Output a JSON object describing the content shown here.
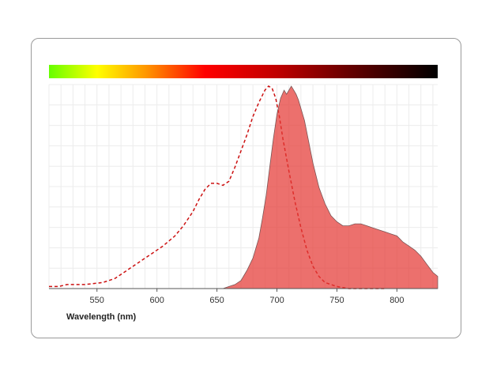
{
  "chart_data": {
    "type": "area",
    "xlabel": "Wavelength (nm)",
    "ylabel": "",
    "xlim": [
      510,
      834
    ],
    "ylim": [
      0,
      1.0
    ],
    "x_ticks": [
      550,
      600,
      650,
      700,
      750,
      800
    ],
    "grid": true,
    "legend": "none",
    "spectrum_bar_stops": [
      {
        "nm": 510,
        "color": "#66ff00"
      },
      {
        "nm": 550,
        "color": "#ffff00"
      },
      {
        "nm": 590,
        "color": "#ff9900"
      },
      {
        "nm": 640,
        "color": "#ff0000"
      },
      {
        "nm": 700,
        "color": "#c00000"
      },
      {
        "nm": 760,
        "color": "#660000"
      },
      {
        "nm": 834,
        "color": "#000000"
      }
    ],
    "series": [
      {
        "style": "dashed-line",
        "color": "#cc1111",
        "x": [
          510,
          518,
          525,
          540,
          555,
          565,
          575,
          585,
          595,
          605,
          615,
          622,
          630,
          635,
          640,
          645,
          650,
          655,
          660,
          665,
          670,
          675,
          680,
          685,
          690,
          693,
          696,
          699,
          702,
          705,
          710,
          715,
          720,
          725,
          730,
          735,
          740,
          745,
          750,
          760,
          770,
          780,
          790
        ],
        "y": [
          0.01,
          0.01,
          0.02,
          0.02,
          0.03,
          0.05,
          0.09,
          0.13,
          0.17,
          0.21,
          0.26,
          0.31,
          0.38,
          0.44,
          0.49,
          0.52,
          0.52,
          0.51,
          0.53,
          0.6,
          0.68,
          0.76,
          0.85,
          0.92,
          0.98,
          1.0,
          0.99,
          0.94,
          0.85,
          0.74,
          0.58,
          0.43,
          0.3,
          0.19,
          0.11,
          0.06,
          0.03,
          0.02,
          0.01,
          0.0,
          0.0,
          0.0,
          0.0
        ]
      },
      {
        "style": "filled-area",
        "color": "#e53935",
        "x": [
          655,
          660,
          665,
          670,
          675,
          680,
          685,
          688,
          691,
          694,
          697,
          700,
          703,
          706,
          708,
          710,
          712,
          714,
          716,
          718,
          720,
          723,
          726,
          730,
          735,
          740,
          745,
          750,
          755,
          760,
          765,
          770,
          775,
          780,
          785,
          790,
          795,
          800,
          805,
          810,
          815,
          820,
          825,
          830,
          834
        ],
        "y": [
          0.0,
          0.01,
          0.02,
          0.04,
          0.09,
          0.15,
          0.25,
          0.35,
          0.46,
          0.6,
          0.74,
          0.86,
          0.94,
          0.98,
          0.96,
          0.98,
          1.0,
          0.98,
          0.96,
          0.93,
          0.89,
          0.83,
          0.74,
          0.62,
          0.5,
          0.42,
          0.36,
          0.33,
          0.31,
          0.31,
          0.32,
          0.32,
          0.31,
          0.3,
          0.29,
          0.28,
          0.27,
          0.26,
          0.23,
          0.21,
          0.19,
          0.16,
          0.12,
          0.08,
          0.06
        ]
      }
    ]
  }
}
